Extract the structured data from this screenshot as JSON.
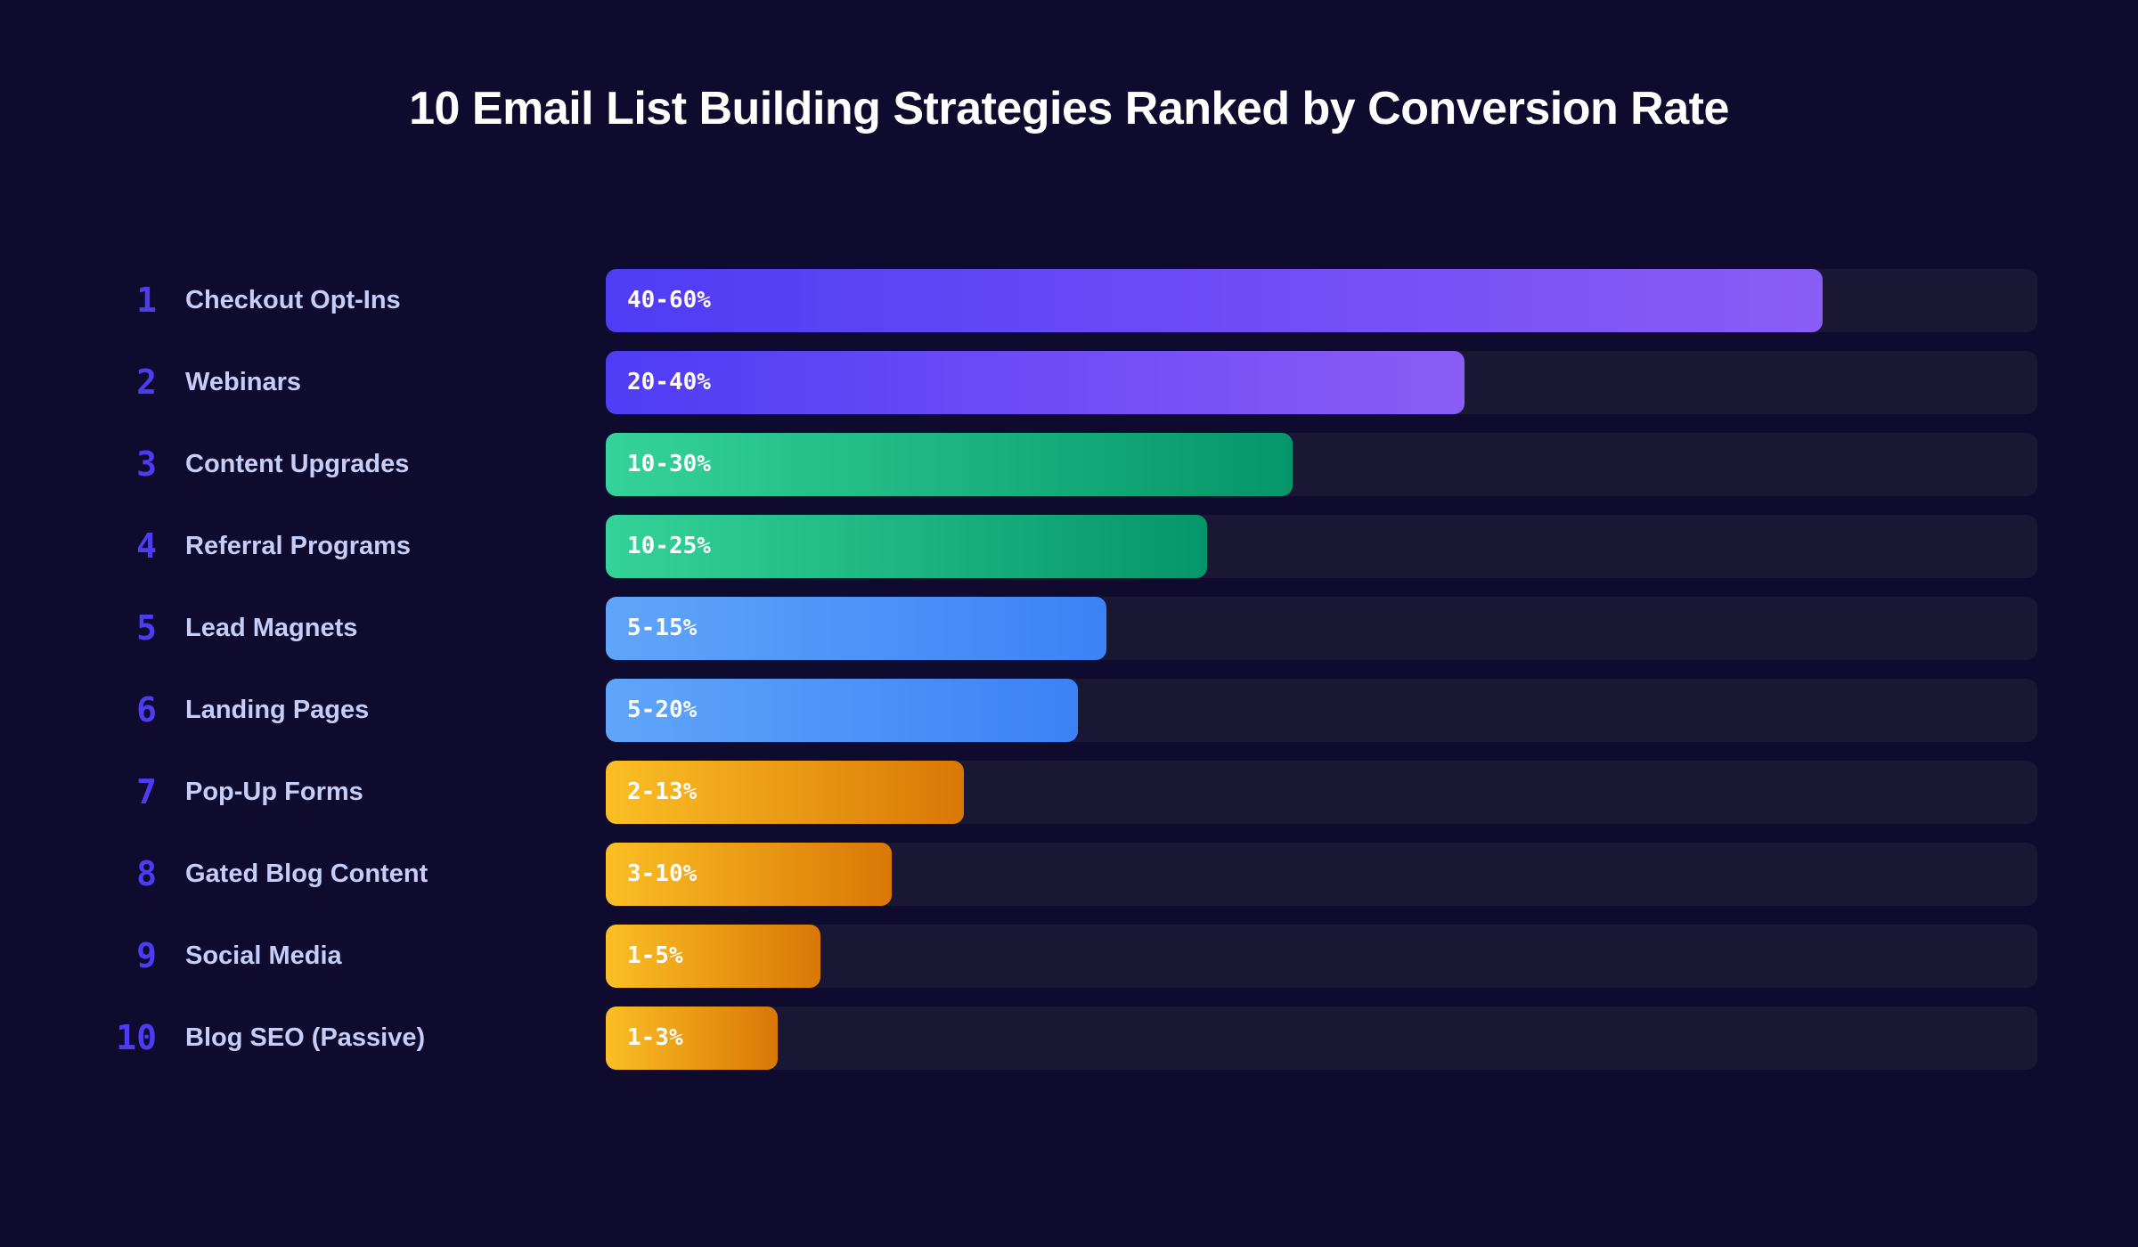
{
  "chart_data": {
    "type": "bar",
    "orientation": "horizontal",
    "title": "10 Email List Building Strategies Ranked by Conversion Rate",
    "xlabel": "",
    "ylabel": "",
    "grid": false,
    "fill_unit": "percent of track",
    "colors": {
      "purple": [
        "#4f3cf5",
        "#8b5cf6"
      ],
      "green": [
        "#34d399",
        "#059669"
      ],
      "blue": [
        "#60a5fa",
        "#3b82f6"
      ],
      "amber": [
        "#fbbf24",
        "#d97706"
      ]
    },
    "rows": [
      {
        "rank": "1",
        "label": "Checkout Opt-Ins",
        "value_label": "40-60%",
        "fill": 85,
        "color": "purple"
      },
      {
        "rank": "2",
        "label": "Webinars",
        "value_label": "20-40%",
        "fill": 60,
        "color": "purple"
      },
      {
        "rank": "3",
        "label": "Content Upgrades",
        "value_label": "10-30%",
        "fill": 48,
        "color": "green"
      },
      {
        "rank": "4",
        "label": "Referral Programs",
        "value_label": "10-25%",
        "fill": 42,
        "color": "green"
      },
      {
        "rank": "5",
        "label": "Lead Magnets",
        "value_label": "5-15%",
        "fill": 35,
        "color": "blue"
      },
      {
        "rank": "6",
        "label": "Landing Pages",
        "value_label": "5-20%",
        "fill": 33,
        "color": "blue"
      },
      {
        "rank": "7",
        "label": "Pop-Up Forms",
        "value_label": "2-13%",
        "fill": 25,
        "color": "amber"
      },
      {
        "rank": "8",
        "label": "Gated Blog Content",
        "value_label": "3-10%",
        "fill": 20,
        "color": "amber"
      },
      {
        "rank": "9",
        "label": "Social Media",
        "value_label": "1-5%",
        "fill": 15,
        "color": "amber"
      },
      {
        "rank": "10",
        "label": "Blog SEO (Passive)",
        "value_label": "1-3%",
        "fill": 12,
        "color": "amber"
      }
    ]
  }
}
